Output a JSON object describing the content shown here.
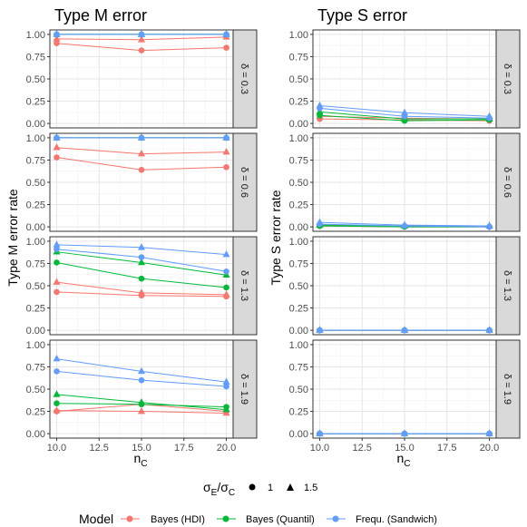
{
  "figure": {
    "panel_titles": [
      "Type M error",
      "Type S error"
    ],
    "y_labels": [
      "Type M error rate",
      "Type S error rate"
    ],
    "x_label": "n",
    "x_label_sub": "C",
    "strip_labels": [
      "δ = 0.3",
      "δ = 0.6",
      "δ = 1.3",
      "δ = 1.9"
    ],
    "shape_legend": {
      "title_main": "σ",
      "title_sub1": "E",
      "title_mid": "/σ",
      "title_sub2": "C",
      "items": [
        {
          "label": "1",
          "shape": "circle"
        },
        {
          "label": "1.5",
          "shape": "triangle"
        }
      ]
    },
    "model_legend": {
      "title": "Model",
      "items": [
        {
          "label": "Bayes (HDI)",
          "color": "#F8766D"
        },
        {
          "label": "Bayes (Quantil)",
          "color": "#00BA38"
        },
        {
          "label": "Frequ. (Sandwich)",
          "color": "#619CFF"
        }
      ]
    }
  },
  "chart_data": {
    "type": "line",
    "x": [
      10,
      15,
      20
    ],
    "x_ticks": [
      "10.0",
      "12.5",
      "15.0",
      "17.5",
      "20.0"
    ],
    "x_lim": [
      9.6,
      20.4
    ],
    "y_ticks": [
      "0.00",
      "0.25",
      "0.50",
      "0.75",
      "1.00"
    ],
    "y_lim": [
      -0.05,
      1.05
    ],
    "grid": true,
    "legend_position": "bottom",
    "panels": [
      {
        "column": "Type M error",
        "row": "δ = 0.3",
        "series": [
          {
            "model": "Bayes (HDI)",
            "ratio": "1",
            "values": [
              0.9,
              0.82,
              0.85
            ]
          },
          {
            "model": "Bayes (HDI)",
            "ratio": "1.5",
            "values": [
              0.95,
              0.94,
              0.97
            ]
          },
          {
            "model": "Bayes (Quantil)",
            "ratio": "1",
            "values": [
              1.0,
              1.0,
              1.0
            ]
          },
          {
            "model": "Bayes (Quantil)",
            "ratio": "1.5",
            "values": [
              1.0,
              1.0,
              1.0
            ]
          },
          {
            "model": "Frequ. (Sandwich)",
            "ratio": "1",
            "values": [
              1.0,
              1.0,
              1.0
            ]
          },
          {
            "model": "Frequ. (Sandwich)",
            "ratio": "1.5",
            "values": [
              1.0,
              1.0,
              1.0
            ]
          }
        ]
      },
      {
        "column": "Type S error",
        "row": "δ = 0.3",
        "series": [
          {
            "model": "Bayes (HDI)",
            "ratio": "1",
            "values": [
              0.05,
              0.04,
              0.03
            ]
          },
          {
            "model": "Bayes (HDI)",
            "ratio": "1.5",
            "values": [
              0.08,
              0.06,
              0.05
            ]
          },
          {
            "model": "Bayes (Quantil)",
            "ratio": "1",
            "values": [
              0.09,
              0.03,
              0.04
            ]
          },
          {
            "model": "Bayes (Quantil)",
            "ratio": "1.5",
            "values": [
              0.13,
              0.05,
              0.05
            ]
          },
          {
            "model": "Frequ. (Sandwich)",
            "ratio": "1",
            "values": [
              0.17,
              0.08,
              0.06
            ]
          },
          {
            "model": "Frequ. (Sandwich)",
            "ratio": "1.5",
            "values": [
              0.2,
              0.12,
              0.08
            ]
          }
        ]
      },
      {
        "column": "Type M error",
        "row": "δ = 0.6",
        "series": [
          {
            "model": "Bayes (HDI)",
            "ratio": "1",
            "values": [
              0.78,
              0.64,
              0.67
            ]
          },
          {
            "model": "Bayes (HDI)",
            "ratio": "1.5",
            "values": [
              0.89,
              0.82,
              0.84
            ]
          },
          {
            "model": "Bayes (Quantil)",
            "ratio": "1",
            "values": [
              1.0,
              1.0,
              1.0
            ]
          },
          {
            "model": "Bayes (Quantil)",
            "ratio": "1.5",
            "values": [
              1.0,
              1.0,
              1.0
            ]
          },
          {
            "model": "Frequ. (Sandwich)",
            "ratio": "1",
            "values": [
              1.0,
              1.0,
              1.0
            ]
          },
          {
            "model": "Frequ. (Sandwich)",
            "ratio": "1.5",
            "values": [
              1.0,
              1.0,
              1.0
            ]
          }
        ]
      },
      {
        "column": "Type S error",
        "row": "δ = 0.6",
        "series": [
          {
            "model": "Bayes (HDI)",
            "ratio": "1",
            "values": [
              0.01,
              0.0,
              0.0
            ]
          },
          {
            "model": "Bayes (HDI)",
            "ratio": "1.5",
            "values": [
              0.02,
              0.01,
              0.01
            ]
          },
          {
            "model": "Bayes (Quantil)",
            "ratio": "1",
            "values": [
              0.01,
              0.0,
              0.0
            ]
          },
          {
            "model": "Bayes (Quantil)",
            "ratio": "1.5",
            "values": [
              0.02,
              0.01,
              0.01
            ]
          },
          {
            "model": "Frequ. (Sandwich)",
            "ratio": "1",
            "values": [
              0.03,
              0.01,
              0.0
            ]
          },
          {
            "model": "Frequ. (Sandwich)",
            "ratio": "1.5",
            "values": [
              0.05,
              0.02,
              0.01
            ]
          }
        ]
      },
      {
        "column": "Type M error",
        "row": "δ = 1.3",
        "series": [
          {
            "model": "Bayes (HDI)",
            "ratio": "1",
            "values": [
              0.43,
              0.39,
              0.38
            ]
          },
          {
            "model": "Bayes (HDI)",
            "ratio": "1.5",
            "values": [
              0.54,
              0.42,
              0.4
            ]
          },
          {
            "model": "Bayes (Quantil)",
            "ratio": "1",
            "values": [
              0.76,
              0.58,
              0.48
            ]
          },
          {
            "model": "Bayes (Quantil)",
            "ratio": "1.5",
            "values": [
              0.88,
              0.76,
              0.62
            ]
          },
          {
            "model": "Frequ. (Sandwich)",
            "ratio": "1",
            "values": [
              0.91,
              0.82,
              0.66
            ]
          },
          {
            "model": "Frequ. (Sandwich)",
            "ratio": "1.5",
            "values": [
              0.96,
              0.93,
              0.85
            ]
          }
        ]
      },
      {
        "column": "Type S error",
        "row": "δ = 1.3",
        "series": [
          {
            "model": "Bayes (HDI)",
            "ratio": "1",
            "values": [
              0.0,
              0.0,
              0.0
            ]
          },
          {
            "model": "Bayes (HDI)",
            "ratio": "1.5",
            "values": [
              0.0,
              0.0,
              0.0
            ]
          },
          {
            "model": "Bayes (Quantil)",
            "ratio": "1",
            "values": [
              0.0,
              0.0,
              0.0
            ]
          },
          {
            "model": "Bayes (Quantil)",
            "ratio": "1.5",
            "values": [
              0.0,
              0.0,
              0.0
            ]
          },
          {
            "model": "Frequ. (Sandwich)",
            "ratio": "1",
            "values": [
              0.0,
              0.0,
              0.0
            ]
          },
          {
            "model": "Frequ. (Sandwich)",
            "ratio": "1.5",
            "values": [
              0.0,
              0.0,
              0.0
            ]
          }
        ]
      },
      {
        "column": "Type M error",
        "row": "δ = 1.9",
        "series": [
          {
            "model": "Bayes (HDI)",
            "ratio": "1",
            "values": [
              0.25,
              0.33,
              0.25
            ]
          },
          {
            "model": "Bayes (HDI)",
            "ratio": "1.5",
            "values": [
              0.26,
              0.25,
              0.23
            ]
          },
          {
            "model": "Bayes (Quantil)",
            "ratio": "1",
            "values": [
              0.34,
              0.33,
              0.3
            ]
          },
          {
            "model": "Bayes (Quantil)",
            "ratio": "1.5",
            "values": [
              0.44,
              0.35,
              0.27
            ]
          },
          {
            "model": "Frequ. (Sandwich)",
            "ratio": "1",
            "values": [
              0.7,
              0.6,
              0.53
            ]
          },
          {
            "model": "Frequ. (Sandwich)",
            "ratio": "1.5",
            "values": [
              0.84,
              0.7,
              0.58
            ]
          }
        ]
      },
      {
        "column": "Type S error",
        "row": "δ = 1.9",
        "series": [
          {
            "model": "Bayes (HDI)",
            "ratio": "1",
            "values": [
              0.0,
              0.0,
              0.0
            ]
          },
          {
            "model": "Bayes (HDI)",
            "ratio": "1.5",
            "values": [
              0.0,
              0.0,
              0.0
            ]
          },
          {
            "model": "Bayes (Quantil)",
            "ratio": "1",
            "values": [
              0.0,
              0.0,
              0.0
            ]
          },
          {
            "model": "Bayes (Quantil)",
            "ratio": "1.5",
            "values": [
              0.0,
              0.0,
              0.0
            ]
          },
          {
            "model": "Frequ. (Sandwich)",
            "ratio": "1",
            "values": [
              0.0,
              0.0,
              0.0
            ]
          },
          {
            "model": "Frequ. (Sandwich)",
            "ratio": "1.5",
            "values": [
              0.0,
              0.0,
              0.0
            ]
          }
        ]
      }
    ]
  }
}
